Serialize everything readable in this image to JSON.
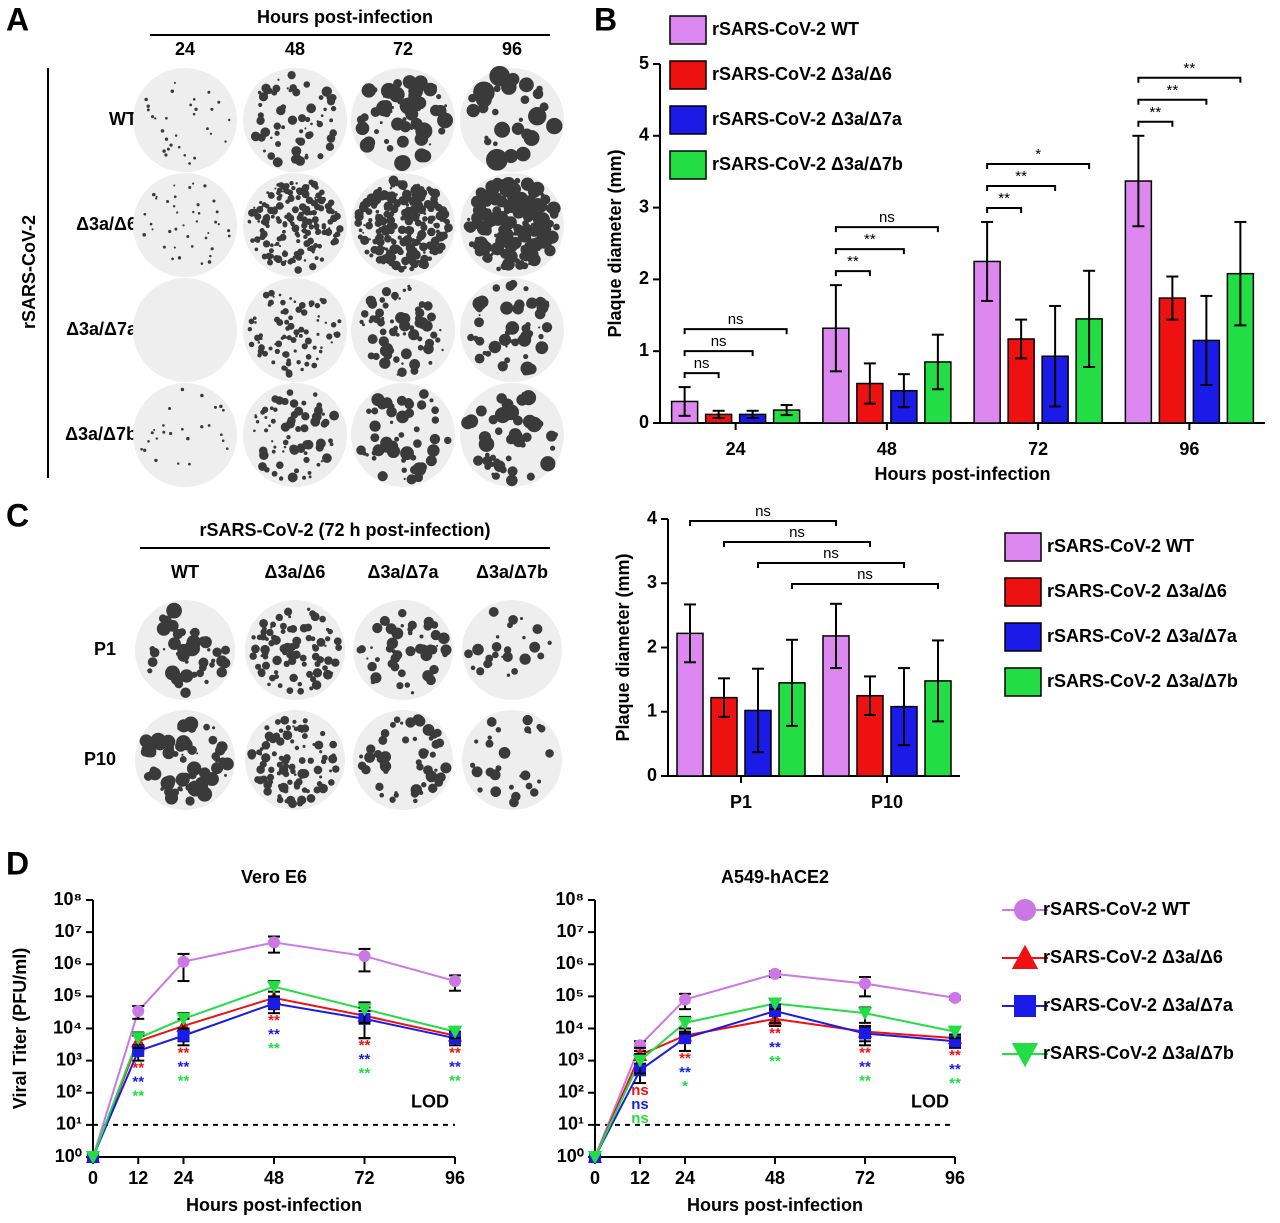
{
  "panel_labels": [
    "A",
    "B",
    "C",
    "D"
  ],
  "plaque_grid_A": {
    "header": "Hours post-infection",
    "columns": [
      "24",
      "48",
      "72",
      "96"
    ],
    "row_title": "rSARS-CoV-2",
    "rows": [
      "WT",
      "Δ3a/Δ6",
      "Δ3a/Δ7a",
      "Δ3a/Δ7b"
    ]
  },
  "plaque_grid_C": {
    "header": "rSARS-CoV-2 (72 h post-infection)",
    "columns": [
      "WT",
      "Δ3a/Δ6",
      "Δ3a/Δ7a",
      "Δ3a/Δ7b"
    ],
    "rows": [
      "P1",
      "P10"
    ]
  },
  "chart_data": [
    {
      "type": "bar",
      "categories": [
        "24",
        "48",
        "72",
        "96"
      ],
      "xlabel": "Hours post-infection",
      "ylabel": "Plaque diameter (mm)",
      "ylim": [
        0,
        5
      ],
      "yticks": [
        0,
        1,
        2,
        3,
        4,
        5
      ],
      "legend": "top",
      "series": [
        {
          "name": "rSARS-CoV-2 WT",
          "color": "#dd88f0",
          "values": [
            0.3,
            1.32,
            2.25,
            3.37
          ],
          "errors": [
            0.2,
            0.6,
            0.55,
            0.63
          ]
        },
        {
          "name": "rSARS-CoV-2 Δ3a/Δ6",
          "color": "#ee1111",
          "values": [
            0.12,
            0.55,
            1.17,
            1.74
          ],
          "errors": [
            0.05,
            0.28,
            0.27,
            0.3
          ]
        },
        {
          "name": "rSARS-CoV-2 Δ3a/Δ7a",
          "color": "#1b1be8",
          "values": [
            0.12,
            0.45,
            0.93,
            1.15
          ],
          "errors": [
            0.05,
            0.23,
            0.7,
            0.62
          ]
        },
        {
          "name": "rSARS-CoV-2 Δ3a/Δ7b",
          "color": "#22dd44",
          "values": [
            0.18,
            0.85,
            1.45,
            2.08
          ],
          "errors": [
            0.07,
            0.38,
            0.67,
            0.72
          ]
        }
      ],
      "annotations": [
        [
          "ns",
          "ns",
          "ns"
        ],
        [
          "**",
          "**",
          "ns"
        ],
        [
          "**",
          "**",
          "*"
        ],
        [
          "**",
          "**",
          "**"
        ]
      ]
    },
    {
      "type": "bar",
      "categories": [
        "P1",
        "P10"
      ],
      "ylabel": "Plaque diameter (mm)",
      "ylim": [
        0,
        4
      ],
      "yticks": [
        0,
        1,
        2,
        3,
        4
      ],
      "legend": "right",
      "series": [
        {
          "name": "rSARS-CoV-2 WT",
          "color": "#dd88f0",
          "values": [
            2.22,
            2.18
          ],
          "errors": [
            0.45,
            0.5
          ]
        },
        {
          "name": "rSARS-CoV-2 Δ3a/Δ6",
          "color": "#ee1111",
          "values": [
            1.22,
            1.25
          ],
          "errors": [
            0.3,
            0.3
          ]
        },
        {
          "name": "rSARS-CoV-2 Δ3a/Δ7a",
          "color": "#1b1be8",
          "values": [
            1.02,
            1.08
          ],
          "errors": [
            0.65,
            0.6
          ]
        },
        {
          "name": "rSARS-CoV-2 Δ3a/Δ7b",
          "color": "#22dd44",
          "values": [
            1.45,
            1.48
          ],
          "errors": [
            0.67,
            0.63
          ]
        }
      ],
      "annotations": [
        "ns",
        "ns",
        "ns",
        "ns"
      ]
    },
    {
      "type": "line",
      "title": "Vero E6",
      "xlabel": "Hours post-infection",
      "ylabel": "Viral Titer (PFU/ml)",
      "log": true,
      "x": [
        0,
        12,
        24,
        48,
        72,
        96
      ],
      "xlim": [
        0,
        96
      ],
      "xticks": [
        0,
        12,
        24,
        48,
        72,
        96
      ],
      "ylim": [
        1,
        100000000
      ],
      "yticks": [
        {
          "value": 1,
          "label": "10⁰"
        },
        {
          "value": 10,
          "label": "10¹"
        },
        {
          "value": 100,
          "label": "10²"
        },
        {
          "value": 1000,
          "label": "10³"
        },
        {
          "value": 10000,
          "label": "10⁴"
        },
        {
          "value": 100000,
          "label": "10⁵"
        },
        {
          "value": 1000000,
          "label": "10⁶"
        },
        {
          "value": 10000000,
          "label": "10⁷"
        },
        {
          "value": 100000000,
          "label": "10⁸"
        }
      ],
      "lod": 10,
      "lod_label": "LOD",
      "legend": false,
      "series": [
        {
          "name": "rSARS-CoV-2 WT",
          "color": "#cc77e6",
          "marker": "circle",
          "values": [
            1,
            35000,
            1200000,
            4800000,
            1800000,
            300000
          ],
          "errors": [
            0,
            15000,
            900000,
            2500000,
            1200000,
            150000
          ]
        },
        {
          "name": "rSARS-CoV-2 Δ3a/Δ6",
          "color": "#ee1111",
          "marker": "triangle",
          "values": [
            1,
            4000,
            12000,
            90000,
            25000,
            6000
          ],
          "errors": [
            0,
            2000,
            8000,
            50000,
            20000,
            2000
          ],
          "significance": [
            null,
            "**",
            "**",
            "**",
            "**",
            "**"
          ]
        },
        {
          "name": "rSARS-CoV-2 Δ3a/Δ7a",
          "color": "#1b1be8",
          "marker": "square",
          "values": [
            1,
            2000,
            6000,
            60000,
            20000,
            5000
          ],
          "errors": [
            0,
            1000,
            3000,
            30000,
            15000,
            2000
          ],
          "significance": [
            null,
            "**",
            "**",
            "**",
            "**",
            "**"
          ]
        },
        {
          "name": "rSARS-CoV-2 Δ3a/Δ7b",
          "color": "#22dd44",
          "marker": "triangle-down",
          "values": [
            1,
            5000,
            20000,
            200000,
            40000,
            8000
          ],
          "errors": [
            0,
            2500,
            10000,
            100000,
            25000,
            3000
          ],
          "significance": [
            null,
            "**",
            "**",
            "**",
            "**",
            "**"
          ]
        }
      ]
    },
    {
      "type": "line",
      "title": "A549-hACE2",
      "xlabel": "Hours post-infection",
      "log": true,
      "x": [
        0,
        12,
        24,
        48,
        72,
        96
      ],
      "xlim": [
        0,
        96
      ],
      "xticks": [
        0,
        12,
        24,
        48,
        72,
        96
      ],
      "ylim": [
        1,
        100000000
      ],
      "yticks": [
        {
          "value": 1,
          "label": "10⁰"
        },
        {
          "value": 10,
          "label": "10¹"
        },
        {
          "value": 100,
          "label": "10²"
        },
        {
          "value": 1000,
          "label": "10³"
        },
        {
          "value": 10000,
          "label": "10⁴"
        },
        {
          "value": 100000,
          "label": "10⁵"
        },
        {
          "value": 1000000,
          "label": "10⁶"
        },
        {
          "value": 10000000,
          "label": "10⁷"
        },
        {
          "value": 100000000,
          "label": "10⁸"
        }
      ],
      "lod": 10,
      "lod_label": "LOD",
      "legend": "right",
      "series": [
        {
          "name": "rSARS-CoV-2 WT",
          "color": "#cc77e6",
          "marker": "circle",
          "values": [
            1,
            3000,
            80000,
            500000,
            250000,
            90000
          ],
          "errors": [
            0,
            1000,
            40000,
            100000,
            150000,
            10000
          ]
        },
        {
          "name": "rSARS-CoV-2 Δ3a/Δ6",
          "color": "#ee1111",
          "marker": "triangle",
          "values": [
            1,
            1500,
            6000,
            20000,
            8000,
            5000
          ],
          "errors": [
            0,
            1000,
            4000,
            8000,
            4000,
            1500
          ],
          "significance": [
            null,
            "ns",
            "**",
            "**",
            "**",
            "**"
          ]
        },
        {
          "name": "rSARS-CoV-2 Δ3a/Δ7a",
          "color": "#1b1be8",
          "marker": "square",
          "values": [
            1,
            500,
            5000,
            35000,
            7000,
            4000
          ],
          "errors": [
            0,
            300,
            3000,
            20000,
            4000,
            1500
          ],
          "significance": [
            null,
            "ns",
            "**",
            "**",
            "**",
            "**"
          ]
        },
        {
          "name": "rSARS-CoV-2 Δ3a/Δ7b",
          "color": "#22dd44",
          "marker": "triangle-down",
          "values": [
            1,
            1000,
            15000,
            60000,
            30000,
            8000
          ],
          "errors": [
            0,
            600,
            8000,
            20000,
            15000,
            3000
          ],
          "significance": [
            null,
            "ns",
            "*",
            "**",
            "**",
            "**"
          ]
        }
      ]
    }
  ]
}
